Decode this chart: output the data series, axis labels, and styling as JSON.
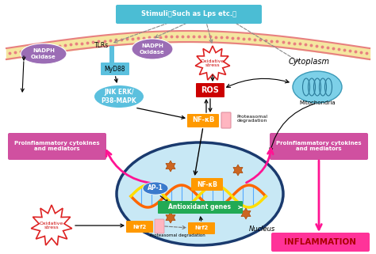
{
  "bg_color": "#ffffff",
  "stimuli_label": "Stimuli（Such as Lps etc.）",
  "stimuli_color": "#4bbdd4",
  "cytoplasm_label": "Cytoplasm",
  "mito_label": "Mitochondria",
  "mito_color": "#5bc0de",
  "tlrs_label": "TLRs",
  "nadph1_label": "NADPH\nOxidase",
  "nadph1_color": "#9b6db5",
  "nadph2_label": "NADPH\nOxidase",
  "nadph2_color": "#9b6db5",
  "myd88_label": "MyD88",
  "myd88_color": "#5bc0de",
  "jnk_label": "JNK ERK/\nP38-MAPK",
  "jnk_color": "#5bc0de",
  "ox_stress_label": "Oxidative\nstress",
  "ros_label": "ROS",
  "ros_bg": "#cc0000",
  "nfkb_label": "NF-κB",
  "nfkb_color": "#ff9900",
  "proteasomal_label": "Proteasomal\ndegradation",
  "proinfl_left_label": "Proinflammatory cytokines\nand mediators",
  "proinfl_right_label": "Proinflammatory cytokines\nand mediators",
  "proinfl_color": "#d050a0",
  "nucleus_label": "Nucleus",
  "nucleus_bg": "#c8e8f5",
  "nucleus_border": "#1a3a6e",
  "ap1_label": "AP-1",
  "ap1_color": "#4488cc",
  "nfkb2_label": "NF-κB",
  "nfkb2_color": "#ff9900",
  "antioxidant_label": "Antioxidant genes",
  "antioxidant_color": "#22aa55",
  "nrf2_label": "Nrf2",
  "nrf2_color": "#ff9900",
  "nrf2b_label": "Nrf2",
  "nrf2b_color": "#ff9900",
  "ox_stress2_label": "Oxidative\nstress",
  "proteasomal2_label": "Proteasomal degradation",
  "inflammation_label": "INFLAMMATION",
  "inflammation_bg": "#ff3399",
  "membrane_fill": "#f5e6a0",
  "membrane_edge": "#e88080",
  "membrane_dot": "#e88080"
}
